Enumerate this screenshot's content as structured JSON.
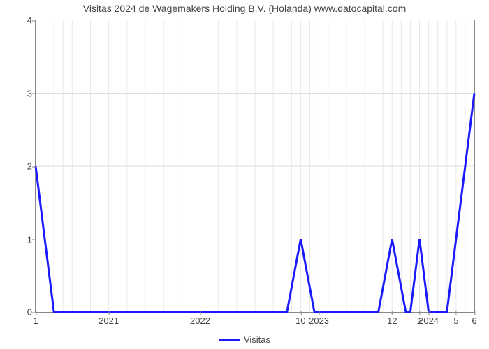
{
  "chart": {
    "type": "line",
    "title": "Visitas 2024 de Wagemakers Holding B.V. (Holanda) www.datocapital.com",
    "title_fontsize": 14,
    "title_color": "#444444",
    "background_color": "#ffffff",
    "plot_border_color": "#888888",
    "grid_color": "#dddddd",
    "grid_minor_color": "#e8e8e8",
    "line_color": "#1a1aff",
    "line_width": 3,
    "x_domain": [
      0,
      48
    ],
    "y_axis": {
      "min": 0,
      "max": 4,
      "ticks": [
        0,
        1,
        2,
        3,
        4
      ],
      "label_color": "#444444",
      "label_fontsize": 13
    },
    "x_axis": {
      "ticks": [
        {
          "pos": 0,
          "label": "1"
        },
        {
          "pos": 8,
          "label": "2021"
        },
        {
          "pos": 18,
          "label": "2022"
        },
        {
          "pos": 29,
          "label": "10"
        },
        {
          "pos": 31,
          "label": "2023"
        },
        {
          "pos": 39,
          "label": "12"
        },
        {
          "pos": 42,
          "label": "2"
        },
        {
          "pos": 43,
          "label": "2024"
        },
        {
          "pos": 46,
          "label": "5"
        },
        {
          "pos": 48,
          "label": "6"
        }
      ],
      "label_color": "#444444",
      "label_fontsize": 13
    },
    "x_minor_gridlines": [
      0,
      2,
      3,
      4,
      6,
      8,
      10,
      12,
      14,
      16,
      18,
      20,
      22,
      24,
      26,
      28,
      29,
      30,
      31,
      32,
      34,
      36,
      38,
      39,
      40,
      41,
      42,
      43,
      44,
      45,
      46,
      47,
      48
    ],
    "series": {
      "name": "Visitas",
      "points": [
        [
          0,
          2.0
        ],
        [
          2,
          0.0
        ],
        [
          27.5,
          0.0
        ],
        [
          29,
          1.0
        ],
        [
          30.5,
          0.0
        ],
        [
          37.5,
          0.0
        ],
        [
          39,
          1.0
        ],
        [
          40.5,
          0.0
        ],
        [
          41,
          0.0
        ],
        [
          42,
          1.0
        ],
        [
          43,
          0.0
        ],
        [
          45,
          0.0
        ],
        [
          48,
          3.0
        ]
      ]
    },
    "legend": {
      "label": "Visitas",
      "color": "#1a1aff",
      "fontsize": 13
    }
  }
}
